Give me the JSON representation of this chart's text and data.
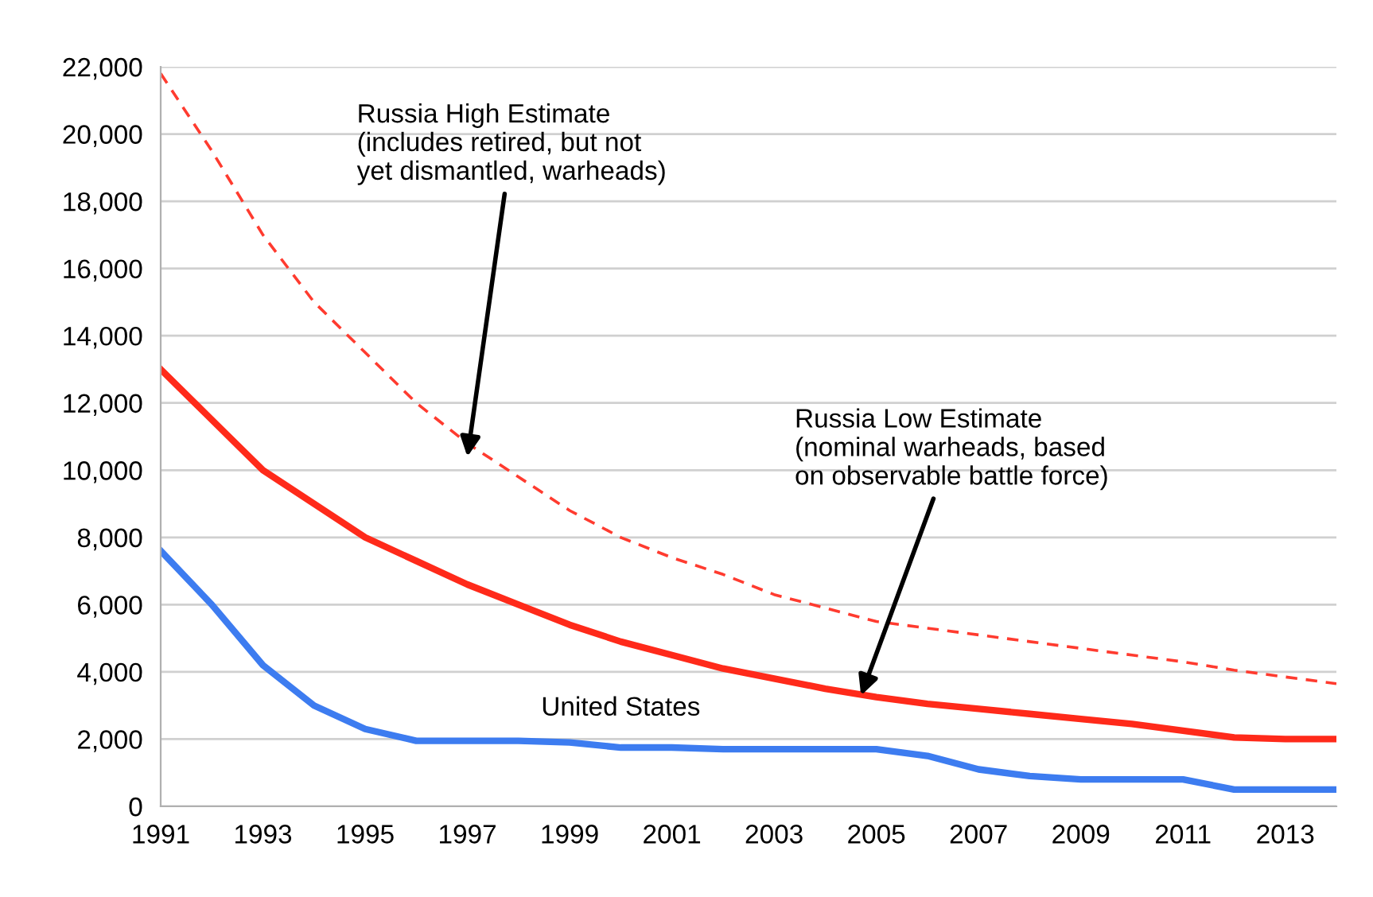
{
  "chart_data": {
    "type": "line",
    "x": [
      1991,
      1992,
      1993,
      1994,
      1995,
      1996,
      1997,
      1998,
      1999,
      2000,
      2001,
      2002,
      2003,
      2004,
      2005,
      2006,
      2007,
      2008,
      2009,
      2010,
      2011,
      2012,
      2013,
      2014
    ],
    "xlim": [
      1991,
      2014
    ],
    "xticks": [
      1991,
      1993,
      1995,
      1997,
      1999,
      2001,
      2003,
      2005,
      2007,
      2009,
      2011,
      2013
    ],
    "ylim": [
      0,
      22000
    ],
    "yticks": [
      {
        "value": 0,
        "label": "0"
      },
      {
        "value": 2000,
        "label": "2,000"
      },
      {
        "value": 4000,
        "label": "4,000"
      },
      {
        "value": 6000,
        "label": "6,000"
      },
      {
        "value": 8000,
        "label": "8,000"
      },
      {
        "value": 10000,
        "label": "10,000"
      },
      {
        "value": 12000,
        "label": "12,000"
      },
      {
        "value": 14000,
        "label": "14,000"
      },
      {
        "value": 16000,
        "label": "16,000"
      },
      {
        "value": 18000,
        "label": "18,000"
      },
      {
        "value": 20000,
        "label": "20,000"
      },
      {
        "value": 22000,
        "label": "22,000"
      }
    ],
    "grid": "y",
    "marker": "none",
    "series": [
      {
        "color": "#ff3b2f",
        "line_style": "dashed",
        "values": [
          21800,
          19500,
          17000,
          15000,
          13500,
          12000,
          10800,
          9800,
          8800,
          8000,
          7400,
          6900,
          6300,
          5900,
          5500,
          5300,
          5100,
          4900,
          4700,
          4500,
          4300,
          4050,
          3850,
          3650
        ]
      },
      {
        "color": "#ff2a1a",
        "line_style": "solid",
        "values": [
          13000,
          11500,
          10000,
          9000,
          8000,
          7300,
          6600,
          6000,
          5400,
          4900,
          4500,
          4100,
          3800,
          3500,
          3250,
          3050,
          2900,
          2750,
          2600,
          2450,
          2250,
          2050,
          2000,
          2000
        ]
      },
      {
        "name": "United States",
        "color": "#3d7cf0",
        "line_style": "solid",
        "values": [
          7600,
          6000,
          4200,
          3000,
          2300,
          1950,
          1950,
          1950,
          1900,
          1750,
          1750,
          1700,
          1700,
          1700,
          1700,
          1500,
          1100,
          900,
          800,
          800,
          800,
          500,
          500,
          500
        ]
      }
    ],
    "annotations": [
      {
        "text": "Russia High Estimate\n(includes retired, but not\nyet dismantled, warheads)",
        "x": 1997,
        "y": 10400
      },
      {
        "text": "Russia Low Estimate\n(nominal warheads, based\non observable battle force)",
        "x": 2004.7,
        "y": 3300
      }
    ]
  }
}
